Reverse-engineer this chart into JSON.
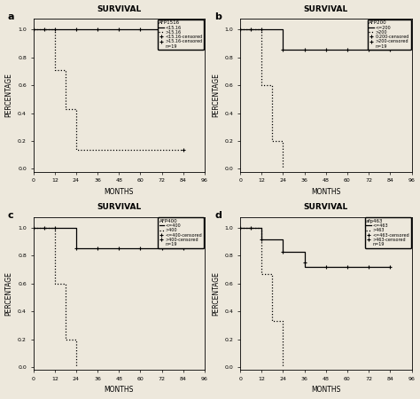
{
  "background_color": "#ede8dc",
  "title": "SURVIVAL",
  "xlabel": "MONTHS",
  "ylabel": "PERCENTAGE",
  "xlim": [
    0,
    96
  ],
  "ylim": [
    -0.02,
    1.08
  ],
  "xticks": [
    0,
    12,
    24,
    36,
    48,
    60,
    72,
    84,
    96
  ],
  "yticks": [
    0.0,
    0.2,
    0.4,
    0.6,
    0.8,
    1.0
  ],
  "ytick_labels": [
    "0.0",
    "0.2",
    "0.4",
    "0.6",
    "0.8",
    "1.0"
  ],
  "subplot_a": {
    "label": "a",
    "legend_title": "AFP1516",
    "legend_entries": [
      {
        "label": "<15.16",
        "ltype": "solid",
        "marker": null
      },
      {
        "label": ">15.16",
        "ltype": "dotted",
        "marker": null
      },
      {
        "label": "<15.16-censored",
        "ltype": "none",
        "marker": "+"
      },
      {
        "label": ">15.16-censored",
        "ltype": "none",
        "marker": "+"
      },
      {
        "label": "n=19",
        "ltype": "none",
        "marker": null
      }
    ],
    "curves": [
      {
        "x": [
          0,
          84
        ],
        "y": [
          1.0,
          1.0
        ],
        "style": "solid",
        "lw": 0.9,
        "color": "black",
        "censored_x": [
          0,
          6,
          12,
          24,
          36,
          48,
          60,
          72,
          84
        ],
        "censored_y": [
          1.0,
          1.0,
          1.0,
          1.0,
          1.0,
          1.0,
          1.0,
          1.0,
          1.0
        ]
      },
      {
        "x": [
          0,
          12,
          12,
          18,
          18,
          24,
          24,
          84
        ],
        "y": [
          1.0,
          1.0,
          0.71,
          0.71,
          0.43,
          0.43,
          0.14,
          0.14
        ],
        "style": "dotted",
        "lw": 0.9,
        "color": "black",
        "censored_x": [
          84
        ],
        "censored_y": [
          0.14
        ]
      }
    ]
  },
  "subplot_b": {
    "label": "b",
    "legend_title": "AFP200",
    "legend_entries": [
      {
        "label": "<=200",
        "ltype": "solid",
        "marker": null
      },
      {
        "label": ">200",
        "ltype": "dotted",
        "marker": null
      },
      {
        "label": "0-200-censored",
        "ltype": "none",
        "marker": "+"
      },
      {
        "label": ">200-censored",
        "ltype": "none",
        "marker": "+"
      },
      {
        "label": "n=19",
        "ltype": "none",
        "marker": null
      }
    ],
    "curves": [
      {
        "x": [
          0,
          12,
          24,
          84
        ],
        "y": [
          1.0,
          1.0,
          0.857,
          0.857
        ],
        "style": "solid",
        "lw": 0.9,
        "color": "black",
        "censored_x": [
          0,
          6,
          12,
          24,
          36,
          48,
          60,
          72,
          84
        ],
        "censored_y": [
          1.0,
          1.0,
          1.0,
          0.857,
          0.857,
          0.857,
          0.857,
          0.857,
          0.857
        ]
      },
      {
        "x": [
          0,
          12,
          12,
          18,
          18,
          24
        ],
        "y": [
          1.0,
          1.0,
          0.6,
          0.6,
          0.2,
          0.0
        ],
        "style": "dotted",
        "lw": 0.9,
        "color": "black",
        "censored_x": [],
        "censored_y": []
      }
    ]
  },
  "subplot_c": {
    "label": "c",
    "legend_title": "AFP400",
    "legend_entries": [
      {
        "label": "<=400",
        "ltype": "solid",
        "marker": null
      },
      {
        "label": ">400",
        "ltype": "dotted",
        "marker": null
      },
      {
        "label": "<=400-censored",
        "ltype": "none",
        "marker": "+"
      },
      {
        "label": ">400-censored",
        "ltype": "none",
        "marker": "+"
      },
      {
        "label": "n=19",
        "ltype": "none",
        "marker": null
      }
    ],
    "curves": [
      {
        "x": [
          0,
          12,
          24,
          84
        ],
        "y": [
          1.0,
          1.0,
          0.857,
          0.857
        ],
        "style": "solid",
        "lw": 0.9,
        "color": "black",
        "censored_x": [
          0,
          6,
          12,
          24,
          36,
          48,
          60,
          72,
          84
        ],
        "censored_y": [
          1.0,
          1.0,
          1.0,
          0.857,
          0.857,
          0.857,
          0.857,
          0.857,
          0.857
        ]
      },
      {
        "x": [
          0,
          12,
          12,
          18,
          18,
          24
        ],
        "y": [
          1.0,
          1.0,
          0.6,
          0.6,
          0.2,
          0.0
        ],
        "style": "dotted",
        "lw": 0.9,
        "color": "black",
        "censored_x": [],
        "censored_y": []
      }
    ]
  },
  "subplot_d": {
    "label": "d",
    "legend_title": "afp463",
    "legend_entries": [
      {
        "label": "<=463",
        "ltype": "solid",
        "marker": null
      },
      {
        "label": ">463",
        "ltype": "dotted",
        "marker": null
      },
      {
        "label": "<=463-censored",
        "ltype": "none",
        "marker": "+"
      },
      {
        "label": ">463-censored",
        "ltype": "none",
        "marker": "+"
      },
      {
        "label": "n=19",
        "ltype": "none",
        "marker": null
      }
    ],
    "curves": [
      {
        "x": [
          0,
          6,
          12,
          12,
          24,
          24,
          36,
          36,
          84
        ],
        "y": [
          1.0,
          1.0,
          0.92,
          0.92,
          0.83,
          0.83,
          0.75,
          0.72,
          0.72
        ],
        "style": "solid",
        "lw": 0.9,
        "color": "black",
        "censored_x": [
          0,
          6,
          12,
          24,
          36,
          48,
          60,
          72,
          84
        ],
        "censored_y": [
          1.0,
          1.0,
          0.92,
          0.83,
          0.75,
          0.72,
          0.72,
          0.72,
          0.72
        ]
      },
      {
        "x": [
          0,
          12,
          12,
          18,
          18,
          24
        ],
        "y": [
          1.0,
          0.667,
          0.667,
          0.333,
          0.333,
          0.0
        ],
        "style": "dotted",
        "lw": 0.9,
        "color": "black",
        "censored_x": [],
        "censored_y": []
      }
    ]
  }
}
